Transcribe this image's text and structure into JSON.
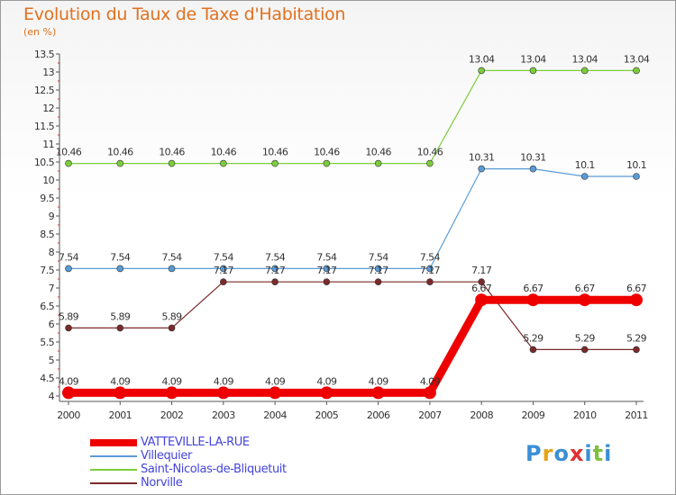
{
  "title": "Evolution du Taux de Taxe d'Habitation",
  "subtitle": "(en %)",
  "logo": {
    "text": "Proxiti",
    "letters": [
      "P",
      "r",
      "o",
      "x",
      "i",
      "t",
      "i"
    ],
    "colors": [
      "#3a8fd6",
      "#e8a317",
      "#3a8fd6",
      "#e03030",
      "#3a8fd6",
      "#7fbf3f",
      "#3a8fd6"
    ]
  },
  "chart_data": {
    "type": "line",
    "x": [
      "2000",
      "2001",
      "2002",
      "2003",
      "2004",
      "2005",
      "2006",
      "2007",
      "2008",
      "2009",
      "2010",
      "2011"
    ],
    "ylim": [
      4,
      13.5
    ],
    "yticks": [
      "4",
      "4.5",
      "5",
      "5.5",
      "6",
      "6.5",
      "7",
      "7.5",
      "8",
      "8.5",
      "9",
      "9.5",
      "10",
      "10.5",
      "11",
      "11.5",
      "12",
      "12.5",
      "13",
      "13.5"
    ],
    "grid": false,
    "legend": "bottom-left",
    "series": [
      {
        "name": "VATTEVILLE-LA-RUE",
        "color": "#ee0000",
        "bold": true,
        "values": [
          4.09,
          4.09,
          4.09,
          4.09,
          4.09,
          4.09,
          4.09,
          4.09,
          6.67,
          6.67,
          6.67,
          6.67
        ],
        "labels": [
          "4.09",
          "4.09",
          "4.09",
          "4.09",
          "4.09",
          "4.09",
          "4.09",
          "4.09",
          "6.67",
          "6.67",
          "6.67",
          "6.67"
        ]
      },
      {
        "name": "Villequier",
        "color": "#5b9bd5",
        "bold": false,
        "values": [
          7.54,
          7.54,
          7.54,
          7.54,
          7.54,
          7.54,
          7.54,
          7.54,
          10.31,
          10.31,
          10.1,
          10.1
        ],
        "labels": [
          "7.54",
          "7.54",
          "7.54",
          "7.54",
          "7.54",
          "7.54",
          "7.54",
          "7.54",
          "10.31",
          "10.31",
          "10.1",
          "10.1"
        ]
      },
      {
        "name": "Saint-Nicolas-de-Bliquetuit",
        "color": "#7ccd3c",
        "bold": false,
        "values": [
          10.46,
          10.46,
          10.46,
          10.46,
          10.46,
          10.46,
          10.46,
          10.46,
          13.04,
          13.04,
          13.04,
          13.04
        ],
        "labels": [
          "10.46",
          "10.46",
          "10.46",
          "10.46",
          "10.46",
          "10.46",
          "10.46",
          "10.46",
          "13.04",
          "13.04",
          "13.04",
          "13.04"
        ]
      },
      {
        "name": "Norville",
        "color": "#7b2a2a",
        "bold": false,
        "values": [
          5.89,
          5.89,
          5.89,
          7.17,
          7.17,
          7.17,
          7.17,
          7.17,
          7.17,
          5.29,
          5.29,
          5.29
        ],
        "labels": [
          "5.89",
          "5.89",
          "5.89",
          "7.17",
          "7.17",
          "7.17",
          "7.17",
          "7.17",
          "7.17",
          "5.29",
          "5.29",
          "5.29"
        ]
      }
    ]
  }
}
